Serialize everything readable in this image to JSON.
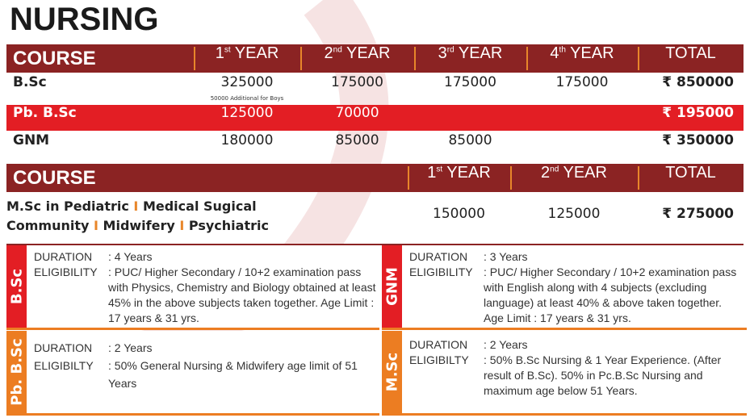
{
  "title": "NURSING",
  "table1": {
    "headers": {
      "course": "COURSE",
      "y1": "1",
      "y1_sup": "st",
      "y2": "2",
      "y2_sup": "nd",
      "y3": "3",
      "y3_sup": "rd",
      "y4": "4",
      "y4_sup": "th",
      "year": " YEAR",
      "total": "TOTAL"
    },
    "rows": [
      {
        "name": "B.Sc",
        "y1": "325000",
        "y1_note": "50000 Additional for Boys",
        "y2": "175000",
        "y3": "175000",
        "y4": "175000",
        "total": "₹ 850000"
      },
      {
        "name": "Pb. B.Sc",
        "y1": "125000",
        "y2": "70000",
        "total": "₹ 195000"
      },
      {
        "name": "GNM",
        "y1": "180000",
        "y2": "85000",
        "y3": "85000",
        "total": "₹ 350000"
      }
    ]
  },
  "table2": {
    "headers": {
      "course": "COURSE",
      "y1": "1",
      "y1_sup": "st",
      "y2": "2",
      "y2_sup": "nd",
      "year": " YEAR",
      "total": "TOTAL"
    },
    "course_parts": [
      "M.Sc in Pediatric",
      "Medical Sugical",
      "Community",
      "Midwifery",
      "Psychiatric"
    ],
    "separator": "I",
    "y1": "150000",
    "y2": "125000",
    "total": "₹ 275000"
  },
  "details": [
    {
      "label": "B.Sc",
      "color": "#e31e24",
      "duration_label": "DURATION",
      "duration": ": 4 Years",
      "elig_label": "ELIGIBILITY",
      "eligibility": ": PUC/ Higher Secondary / 10+2 examination pass with Physics, Chemistry and Biology obtained at least 45% in the above subjects taken together. Age Limit : 17 years & 31 yrs."
    },
    {
      "label": "GNM",
      "color": "#e31e24",
      "duration_label": "DURATION",
      "duration": ": 3 Years",
      "elig_label": "ELIGIBILITY",
      "eligibility": ": PUC/ Higher Secondary / 10+2 examination pass with English along with 4 subjects (excluding language) at least 40% & above taken together. Age Limit : 17 years & 31 yrs."
    },
    {
      "label": "Pb. B.Sc",
      "color": "#ec7d22",
      "duration_label": "DURATION",
      "duration": ": 2 Years",
      "elig_label": "ELIGIBILTY",
      "eligibility": ": 50% General Nursing & Midwifery age limit of 51 Years"
    },
    {
      "label": "M.Sc",
      "color": "#ec7d22",
      "duration_label": "DURATION",
      "duration": ": 2 Years",
      "elig_label": "ELIGIBILTY",
      "eligibility": ": 50% B.Sc Nursing & 1 Year Experience. (After result of B.Sc). 50% in Pc.B.Sc Nursing and maximum age below 51 Years."
    }
  ],
  "colors": {
    "header": "#8b2323",
    "highlight": "#e31e24",
    "accent": "#ec7d22"
  }
}
